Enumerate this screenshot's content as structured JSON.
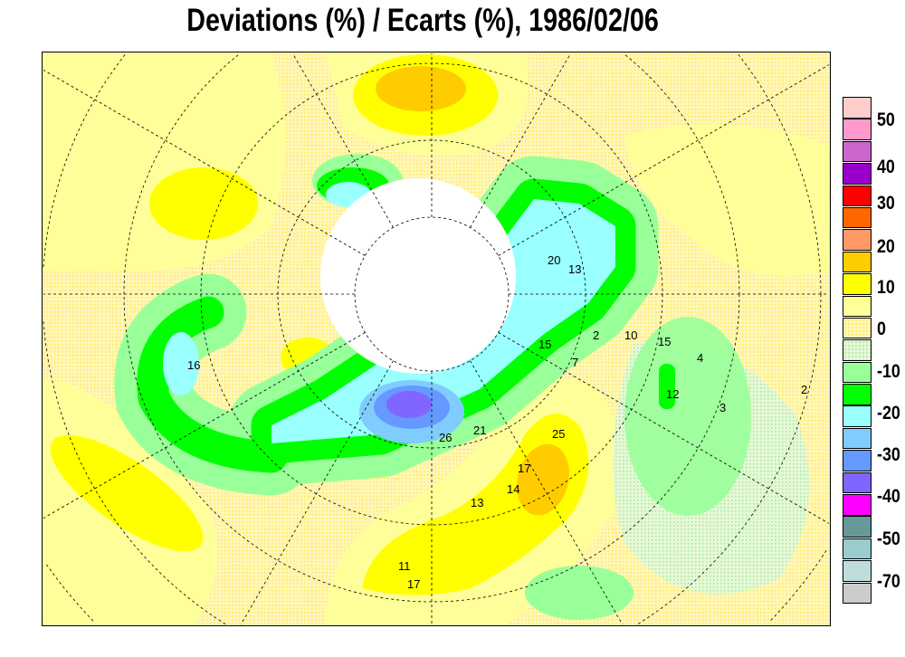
{
  "title": "Deviations (%) / Ecarts (%), 1986/02/06",
  "legend": {
    "labels": [
      "50",
      "40",
      "30",
      "20",
      "10",
      "0",
      "-10",
      "-20",
      "-30",
      "-40",
      "-50",
      "-70"
    ],
    "colors": [
      "#ffcccc",
      "#ff99cc",
      "#cc66cc",
      "#9900cc",
      "#ff0000",
      "#ff6600",
      "#ff9966",
      "#ffcc00",
      "#ffff00",
      "#ffff99",
      "dotted-yellow",
      "dotted-green",
      "#99ff99",
      "#00ff00",
      "#99ffff",
      "#80ccff",
      "#6699ff",
      "#8066ff",
      "#ff00ff",
      "#669999",
      "#99cccc",
      "#c0dddd",
      "#cccccc"
    ]
  },
  "stations": [
    "20",
    "13",
    "15",
    "10",
    "15",
    "12",
    "26",
    "21",
    "16",
    "25",
    "17",
    "14",
    "13",
    "11",
    "17",
    "2",
    "7",
    "4",
    "3",
    "2"
  ]
}
